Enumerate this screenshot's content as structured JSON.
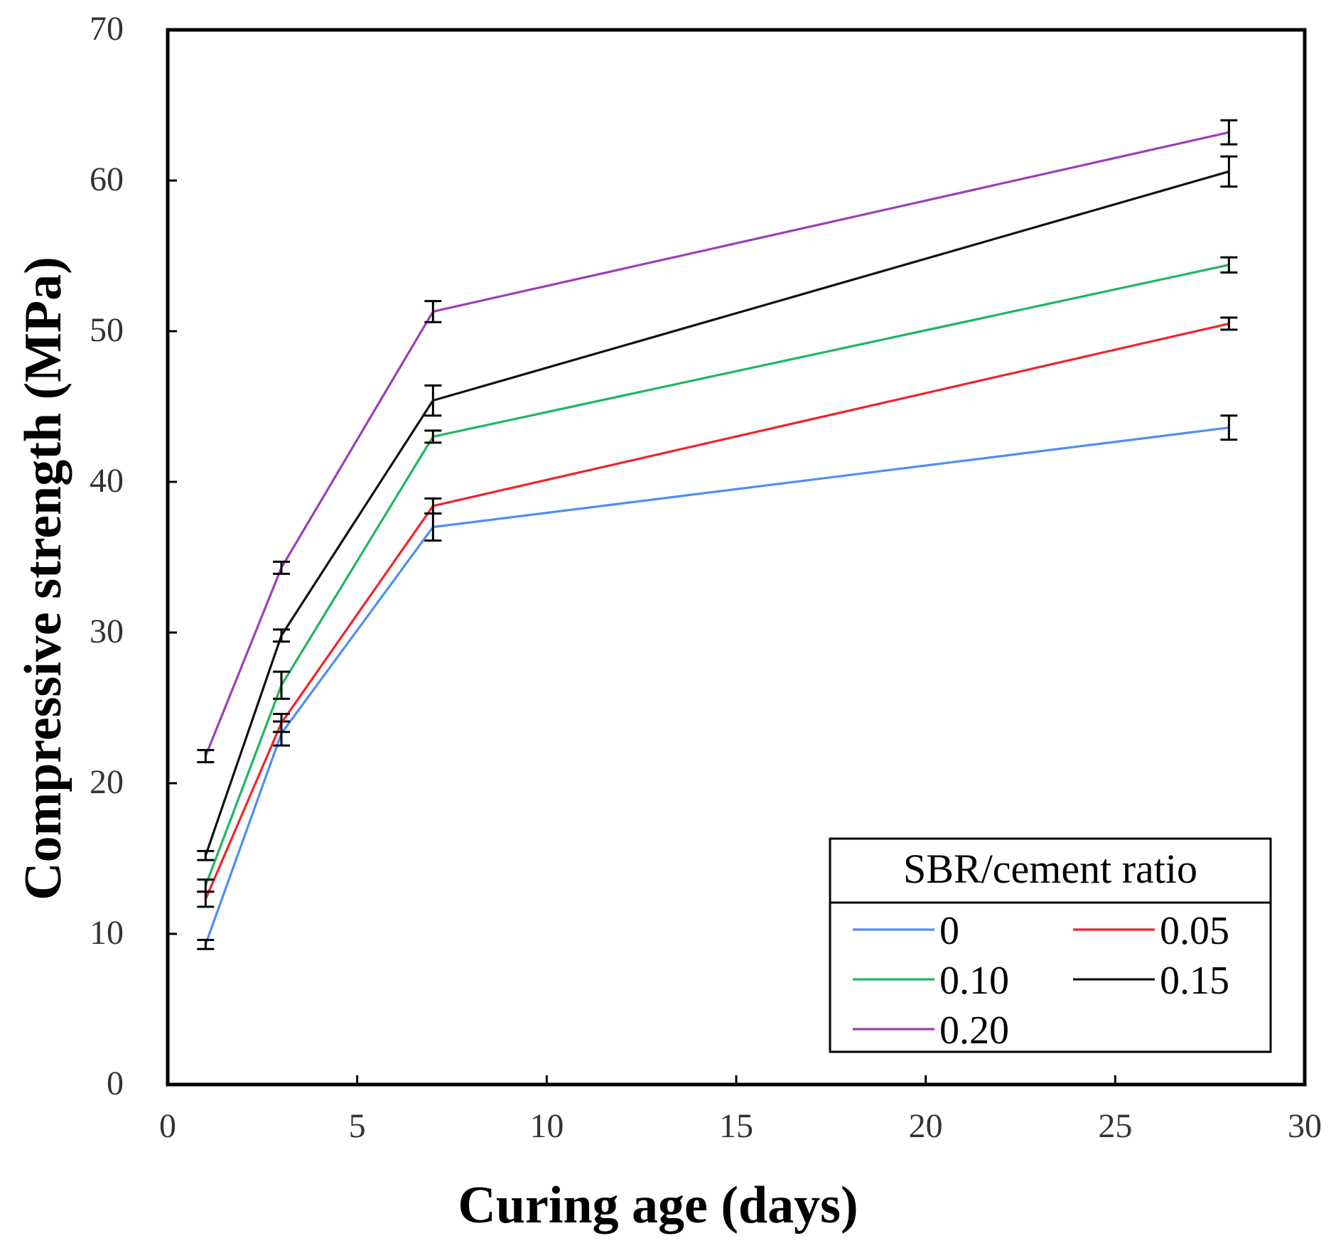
{
  "chart_data": {
    "type": "line",
    "title": "",
    "xlabel": "Curing age (days)",
    "ylabel": "Compressive strength (MPa)",
    "xlim": [
      0,
      30
    ],
    "ylim": [
      0,
      70
    ],
    "xticks": [
      0,
      5,
      10,
      15,
      20,
      25,
      30
    ],
    "yticks": [
      0,
      10,
      20,
      30,
      40,
      50,
      60,
      70
    ],
    "x": [
      1,
      3,
      7,
      28
    ],
    "grid": false,
    "legend": {
      "title": "SBR/cement ratio",
      "placement": "bottom-right",
      "columns": 2
    },
    "series": [
      {
        "name": "0",
        "color": "#4c8df6",
        "values": [
          9.3,
          23.3,
          37.0,
          43.6
        ],
        "errors": [
          0.3,
          0.8,
          0.9,
          0.8
        ]
      },
      {
        "name": "0.05",
        "color": "#f2232a",
        "values": [
          12.3,
          24.0,
          38.4,
          50.5
        ],
        "errors": [
          0.5,
          0.6,
          0.5,
          0.4
        ]
      },
      {
        "name": "0.10",
        "color": "#1fb660",
        "values": [
          13.2,
          26.5,
          43.0,
          54.4
        ],
        "errors": [
          0.4,
          0.9,
          0.4,
          0.5
        ]
      },
      {
        "name": "0.15",
        "color": "#111111",
        "values": [
          15.2,
          29.8,
          45.4,
          60.6
        ],
        "errors": [
          0.3,
          0.4,
          1.0,
          1.0
        ]
      },
      {
        "name": "0.20",
        "color": "#9b3fb8",
        "values": [
          21.8,
          34.3,
          51.3,
          63.2
        ],
        "errors": [
          0.4,
          0.4,
          0.7,
          0.8
        ]
      }
    ]
  }
}
